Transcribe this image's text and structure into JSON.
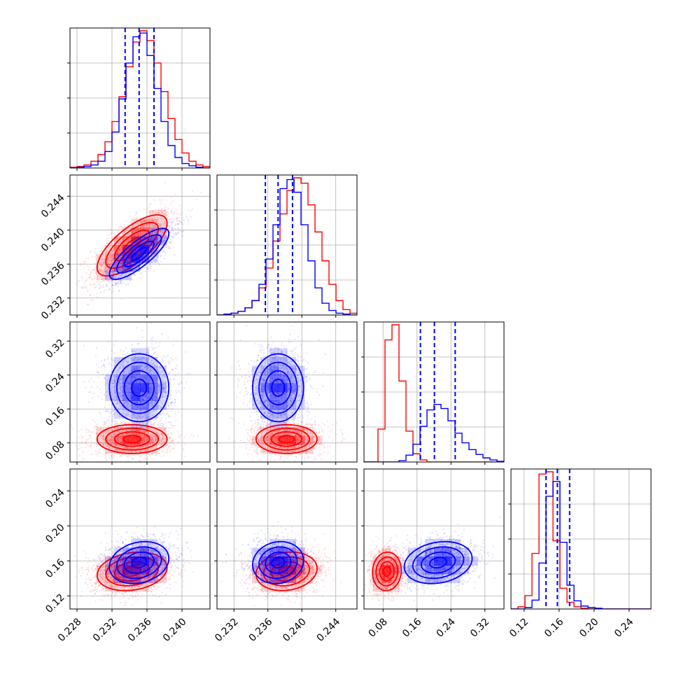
{
  "chart_data": {
    "type": "corner",
    "colors": {
      "series_a": "#ff0000",
      "series_b": "#0000ff"
    },
    "grid": true,
    "legend": "none",
    "parameters": [
      {
        "range": [
          0.2272,
          0.2432
        ],
        "ticks": [
          0.228,
          0.232,
          0.236,
          0.24
        ],
        "tick_labels": [
          "0.228",
          "0.232",
          "0.236",
          "0.240"
        ]
      },
      {
        "range": [
          0.23,
          0.2465
        ],
        "ticks": [
          0.232,
          0.236,
          0.24,
          0.244
        ],
        "tick_labels": [
          "0.232",
          "0.236",
          "0.240",
          "0.244"
        ]
      },
      {
        "range": [
          0.035,
          0.365
        ],
        "ticks": [
          0.08,
          0.16,
          0.24,
          0.32
        ],
        "tick_labels": [
          "0.08",
          "0.16",
          "0.24",
          "0.32"
        ]
      },
      {
        "range": [
          0.105,
          0.265
        ],
        "ticks": [
          0.12,
          0.16,
          0.2,
          0.24
        ],
        "tick_labels": [
          "0.12",
          "0.16",
          "0.20",
          "0.24"
        ]
      }
    ],
    "series": [
      {
        "color": "#ff0000",
        "mean": [
          0.2343,
          0.2382,
          0.089,
          0.148
        ],
        "sd": [
          0.002,
          0.0018,
          0.017,
          0.011
        ],
        "corr": {
          "0-1": 0.72,
          "0-3": 0.2,
          "1-3": 0.15,
          "2-3": 0.05
        },
        "histograms": [
          {
            "edges": [
              0.2272,
              0.2432
            ],
            "counts": [
              1,
              2,
              4,
              9,
              18,
              35,
              62,
              95,
              135,
              168,
              183,
              170,
              140,
              102,
              66,
              38,
              20,
              9,
              4,
              2
            ]
          },
          {
            "edges": [
              0.23,
              0.2465
            ],
            "counts": [
              0,
              1,
              2,
              4,
              8,
              16,
              30,
              52,
              82,
              112,
              138,
              152,
              146,
              122,
              92,
              60,
              34,
              16,
              6,
              2
            ]
          },
          {
            "edges": [
              0.035,
              0.365
            ],
            "counts": [
              0,
              0,
              48,
              178,
              200,
              118,
              45,
              12,
              3,
              0,
              0,
              0,
              0,
              0,
              0,
              0,
              0,
              0,
              0,
              0
            ]
          },
          {
            "edges": [
              0.105,
              0.265
            ],
            "counts": [
              0,
              3,
              18,
              75,
              182,
              185,
              92,
              28,
              9,
              3,
              1,
              0,
              0,
              0,
              0,
              0,
              0,
              0,
              0,
              0
            ]
          }
        ]
      },
      {
        "color": "#0000ff",
        "mean": [
          0.2351,
          0.2372,
          0.21,
          0.158
        ],
        "sd": [
          0.0017,
          0.0015,
          0.04,
          0.012
        ],
        "corr": {
          "0-1": 0.8,
          "0-3": 0.2,
          "1-3": 0.1,
          "2-3": 0.2
        },
        "quantiles": [
          [
            0.2335,
            0.2351,
            0.2368
          ],
          [
            0.2357,
            0.2372,
            0.2389
          ],
          [
            0.168,
            0.201,
            0.25
          ],
          [
            0.145,
            0.158,
            0.172
          ]
        ],
        "histograms": [
          {
            "edges": [
              0.2272,
              0.2432
            ],
            "counts": [
              0,
              1,
              2,
              4,
              9,
              22,
              48,
              92,
              140,
              175,
              180,
              150,
              106,
              62,
              30,
              14,
              6,
              3,
              1,
              0
            ]
          },
          {
            "edges": [
              0.23,
              0.2465
            ],
            "counts": [
              0,
              1,
              2,
              4,
              8,
              16,
              34,
              62,
              100,
              140,
              150,
              136,
              100,
              60,
              30,
              13,
              5,
              2,
              1,
              0
            ]
          },
          {
            "edges": [
              0.035,
              0.365
            ],
            "counts": [
              0,
              0,
              0,
              0,
              0,
              2,
              10,
              26,
              52,
              76,
              84,
              78,
              60,
              42,
              28,
              18,
              11,
              6,
              3,
              1
            ]
          },
          {
            "edges": [
              0.105,
              0.265
            ],
            "counts": [
              0,
              0,
              2,
              12,
              62,
              152,
              172,
              90,
              32,
              11,
              4,
              2,
              1,
              0,
              0,
              0,
              0,
              0,
              0,
              0
            ]
          }
        ]
      }
    ]
  }
}
